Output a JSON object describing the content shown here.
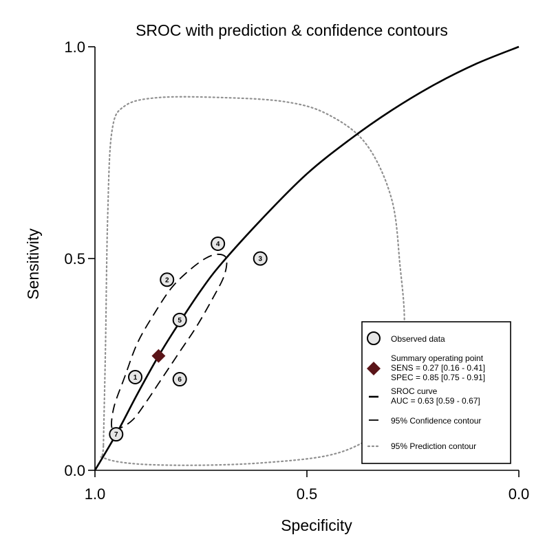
{
  "chart_data": {
    "type": "scatter",
    "title": "SROC with prediction & confidence contours",
    "xlabel": "Specificity",
    "ylabel": "Sensitivity",
    "xlim": [
      1.0,
      0.0
    ],
    "ylim": [
      0.0,
      1.0
    ],
    "x_reversed": true,
    "xticks": [
      1.0,
      0.5,
      0.0
    ],
    "xtick_labels": [
      "1.0",
      "0.5",
      "0.0"
    ],
    "yticks": [
      0.0,
      0.5,
      1.0
    ],
    "ytick_labels": [
      "0.0",
      "0.5",
      "1.0"
    ],
    "grid": false,
    "legend_position": "bottom-right",
    "observed_data": [
      {
        "label": "1",
        "specificity": 0.905,
        "sensitivity": 0.22
      },
      {
        "label": "2",
        "specificity": 0.83,
        "sensitivity": 0.45
      },
      {
        "label": "3",
        "specificity": 0.61,
        "sensitivity": 0.5
      },
      {
        "label": "4",
        "specificity": 0.71,
        "sensitivity": 0.535
      },
      {
        "label": "5",
        "specificity": 0.8,
        "sensitivity": 0.355
      },
      {
        "label": "6",
        "specificity": 0.8,
        "sensitivity": 0.215
      },
      {
        "label": "7",
        "specificity": 0.95,
        "sensitivity": 0.085
      }
    ],
    "summary_point": {
      "specificity": 0.85,
      "sensitivity": 0.27
    },
    "sroc_curve": [
      [
        1.0,
        0.0
      ],
      [
        0.95,
        0.085
      ],
      [
        0.9,
        0.18
      ],
      [
        0.85,
        0.27
      ],
      [
        0.8,
        0.35
      ],
      [
        0.75,
        0.425
      ],
      [
        0.7,
        0.49
      ],
      [
        0.6,
        0.6
      ],
      [
        0.5,
        0.7
      ],
      [
        0.4,
        0.78
      ],
      [
        0.3,
        0.85
      ],
      [
        0.2,
        0.91
      ],
      [
        0.1,
        0.96
      ],
      [
        0.0,
        1.0
      ]
    ],
    "confidence_contour": [
      [
        0.96,
        0.1
      ],
      [
        0.955,
        0.15
      ],
      [
        0.93,
        0.22
      ],
      [
        0.9,
        0.3
      ],
      [
        0.86,
        0.37
      ],
      [
        0.82,
        0.43
      ],
      [
        0.78,
        0.47
      ],
      [
        0.74,
        0.5
      ],
      [
        0.71,
        0.51
      ],
      [
        0.69,
        0.5
      ],
      [
        0.695,
        0.46
      ],
      [
        0.72,
        0.41
      ],
      [
        0.76,
        0.34
      ],
      [
        0.8,
        0.28
      ],
      [
        0.84,
        0.22
      ],
      [
        0.88,
        0.16
      ],
      [
        0.91,
        0.12
      ],
      [
        0.94,
        0.1
      ],
      [
        0.96,
        0.1
      ]
    ],
    "prediction_contour": [
      [
        0.98,
        0.06
      ],
      [
        0.975,
        0.3
      ],
      [
        0.97,
        0.6
      ],
      [
        0.96,
        0.8
      ],
      [
        0.93,
        0.86
      ],
      [
        0.85,
        0.88
      ],
      [
        0.7,
        0.88
      ],
      [
        0.55,
        0.87
      ],
      [
        0.45,
        0.84
      ],
      [
        0.36,
        0.77
      ],
      [
        0.3,
        0.64
      ],
      [
        0.28,
        0.48
      ],
      [
        0.27,
        0.35
      ],
      [
        0.28,
        0.22
      ],
      [
        0.3,
        0.12
      ],
      [
        0.36,
        0.07
      ],
      [
        0.45,
        0.035
      ],
      [
        0.6,
        0.018
      ],
      [
        0.75,
        0.012
      ],
      [
        0.9,
        0.015
      ],
      [
        0.98,
        0.03
      ],
      [
        0.98,
        0.06
      ]
    ],
    "legend": [
      {
        "type": "observed",
        "lines": [
          "Observed data"
        ]
      },
      {
        "type": "summary",
        "lines": [
          "Summary operating point",
          "SENS = 0.27 [0.16 - 0.41]",
          "SPEC = 0.85 [0.75 - 0.91]"
        ]
      },
      {
        "type": "sroc",
        "lines": [
          "SROC curve",
          "AUC = 0.63 [0.59 - 0.67]"
        ]
      },
      {
        "type": "confidence",
        "lines": [
          "95% Confidence contour"
        ]
      },
      {
        "type": "prediction",
        "lines": [
          "95% Prediction contour"
        ]
      }
    ],
    "colors": {
      "summary_point": "#5a1418",
      "observed_fill": "#e6e6e6",
      "prediction_contour": "#909090",
      "lines": "#000000"
    }
  }
}
